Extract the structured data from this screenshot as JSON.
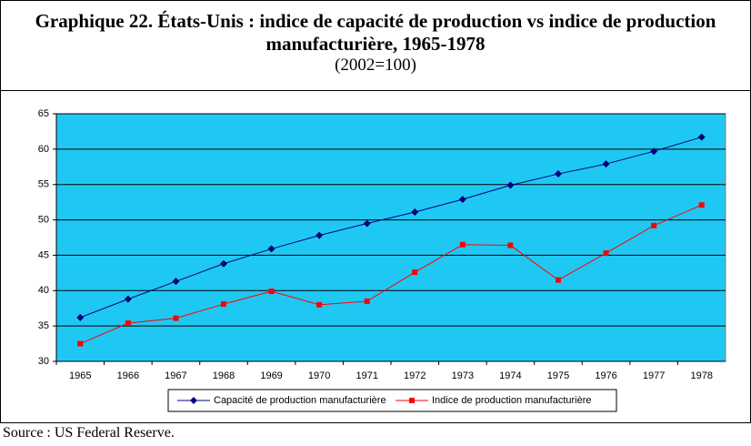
{
  "chart_data": {
    "type": "line",
    "title": "Graphique 22.  États-Unis : indice de capacité de production vs indice de production manufacturière, 1965-1978",
    "subtitle": "(2002=100)",
    "source": "Source : US Federal Reserve.",
    "categories": [
      "1965",
      "1966",
      "1967",
      "1968",
      "1969",
      "1970",
      "1971",
      "1972",
      "1973",
      "1974",
      "1975",
      "1976",
      "1977",
      "1978"
    ],
    "series": [
      {
        "name": "Capacité de production manufacturière",
        "color": "#000080",
        "marker": "diamond",
        "values": [
          36.2,
          38.8,
          41.3,
          43.8,
          45.9,
          47.8,
          49.5,
          51.1,
          52.9,
          54.9,
          56.5,
          57.9,
          59.7,
          61.7
        ]
      },
      {
        "name": "Indice de production manufacturière",
        "color": "#ff0000",
        "marker": "square",
        "values": [
          32.5,
          35.4,
          36.1,
          38.1,
          39.9,
          38.0,
          38.5,
          42.6,
          46.5,
          46.4,
          41.5,
          45.3,
          49.2,
          52.1
        ]
      }
    ],
    "ylim": [
      30,
      65
    ],
    "yticks": [
      30,
      35,
      40,
      45,
      50,
      55,
      60,
      65
    ],
    "grid": true,
    "legend": "bottom",
    "plot_background": "#1fc8f2"
  }
}
